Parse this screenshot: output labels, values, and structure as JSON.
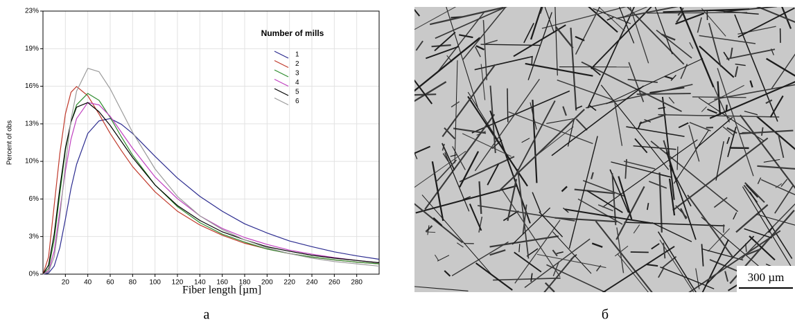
{
  "chart_data": {
    "type": "line",
    "y_label": "Percent of obs",
    "x_label": "Fiber length [µm]",
    "legend_title": "Number of mills",
    "x": [
      0,
      5,
      10,
      15,
      20,
      25,
      30,
      40,
      50,
      60,
      70,
      80,
      100,
      120,
      140,
      160,
      180,
      200,
      220,
      240,
      260,
      280,
      300
    ],
    "series": [
      {
        "name": "1",
        "color": "#2b2b8f",
        "values": [
          0,
          0.1,
          0.7,
          2.3,
          4.8,
          7.5,
          9.6,
          12.3,
          13.4,
          13.6,
          13.1,
          12.3,
          10.3,
          8.4,
          6.8,
          5.5,
          4.4,
          3.6,
          2.9,
          2.4,
          1.95,
          1.6,
          1.3
        ]
      },
      {
        "name": "2",
        "color": "#c0392b",
        "values": [
          0,
          1.5,
          6,
          10.5,
          14,
          15.9,
          16.4,
          15.6,
          14,
          12.3,
          10.8,
          9.4,
          7.2,
          5.5,
          4.3,
          3.4,
          2.7,
          2.2,
          1.8,
          1.5,
          1.25,
          1.05,
          0.9
        ]
      },
      {
        "name": "3",
        "color": "#2e8b2e",
        "values": [
          0,
          0.5,
          3,
          7,
          10.8,
          13.3,
          14.8,
          15.8,
          15.2,
          13.7,
          12,
          10.4,
          7.8,
          5.9,
          4.5,
          3.5,
          2.8,
          2.2,
          1.8,
          1.5,
          1.25,
          1.05,
          0.9
        ]
      },
      {
        "name": "4",
        "color": "#c040c0",
        "values": [
          0,
          0.3,
          2,
          5.5,
          9,
          11.8,
          13.6,
          15,
          14.8,
          13.8,
          12.4,
          11,
          8.5,
          6.6,
          5.1,
          4,
          3.2,
          2.6,
          2.1,
          1.75,
          1.45,
          1.2,
          1.0
        ]
      },
      {
        "name": "5",
        "color": "#000000",
        "values": [
          0,
          0.8,
          3.5,
          7.5,
          11,
          13.3,
          14.6,
          15,
          14.2,
          13,
          11.6,
          10.2,
          7.8,
          6,
          4.7,
          3.7,
          3,
          2.4,
          2,
          1.65,
          1.4,
          1.2,
          1.0
        ]
      },
      {
        "name": "6",
        "color": "#9a9a9a",
        "values": [
          0,
          0.2,
          1.5,
          5,
          9.5,
          13.5,
          16,
          18,
          17.7,
          16.2,
          14.3,
          12.4,
          9.2,
          6.8,
          5.1,
          3.9,
          3,
          2.3,
          1.8,
          1.4,
          1.1,
          0.9,
          0.7
        ]
      }
    ],
    "xlim": [
      0,
      300
    ],
    "xticks": [
      20,
      40,
      60,
      80,
      100,
      120,
      140,
      160,
      180,
      200,
      220,
      240,
      260,
      280
    ],
    "ylim": [
      0,
      23
    ],
    "yticks": [
      {
        "value": 0,
        "label": "0%"
      },
      {
        "value": 3.29,
        "label": "3%"
      },
      {
        "value": 6.57,
        "label": "6%"
      },
      {
        "value": 9.86,
        "label": "10%"
      },
      {
        "value": 13.14,
        "label": "13%"
      },
      {
        "value": 16.43,
        "label": "16%"
      },
      {
        "value": 19.71,
        "label": "19%"
      },
      {
        "value": 23,
        "label": "23%"
      }
    ],
    "grid": true,
    "caption": "а"
  },
  "image": {
    "scale_bar": "300 µm",
    "caption": "б"
  }
}
